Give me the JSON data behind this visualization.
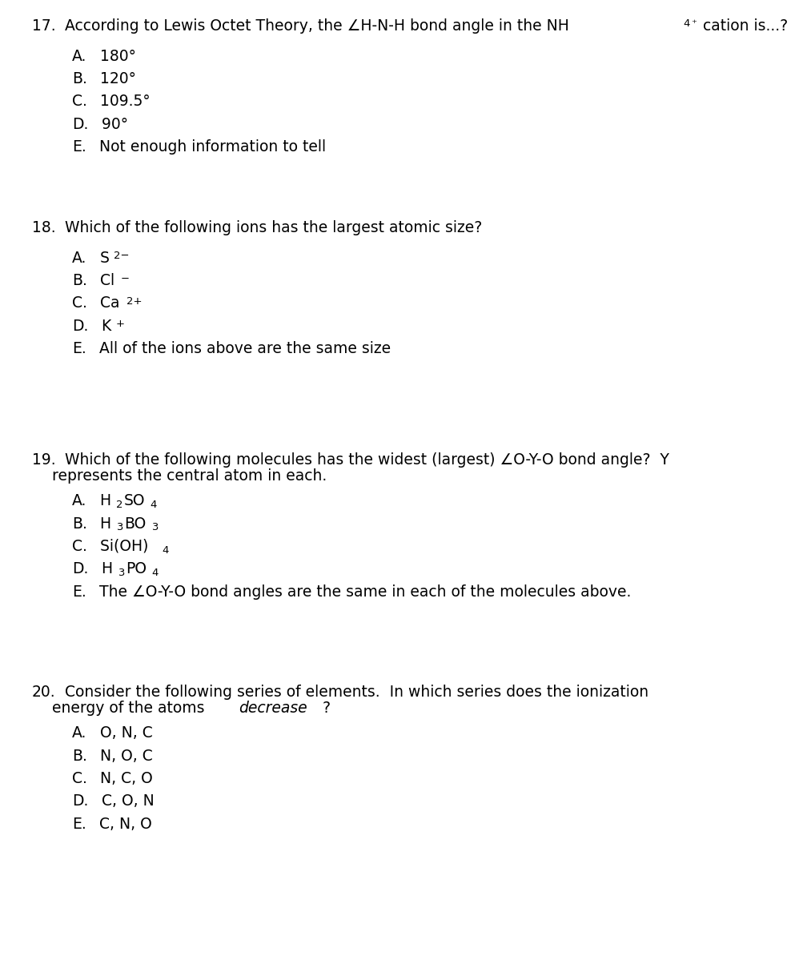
{
  "bg_color": "#ffffff",
  "text_color": "#000000",
  "font_family": "DejaVu Sans",
  "font_size_question": 13.5,
  "font_size_answer": 13.5,
  "questions": [
    {
      "number": "17.",
      "question_parts": [
        {
          "text": "According to Lewis Octet Theory, the ∠H-N-H bond angle in the NH",
          "style": "normal"
        },
        {
          "text": "4",
          "style": "super"
        },
        {
          "text": "⁺",
          "style": "super"
        },
        {
          "text": " cation is...?",
          "style": "normal"
        }
      ],
      "answers": [
        [
          {
            "text": "A.",
            "style": "normal"
          },
          {
            "text": "  180°",
            "style": "normal"
          }
        ],
        [
          {
            "text": "B.",
            "style": "normal"
          },
          {
            "text": "  120°",
            "style": "normal"
          }
        ],
        [
          {
            "text": "C.",
            "style": "normal"
          },
          {
            "text": "  109.5°",
            "style": "normal"
          }
        ],
        [
          {
            "text": "D.",
            "style": "normal"
          },
          {
            "text": "  90°",
            "style": "normal"
          }
        ],
        [
          {
            "text": "E.",
            "style": "normal"
          },
          {
            "text": "  Not enough information to tell",
            "style": "normal"
          }
        ]
      ]
    },
    {
      "number": "18.",
      "question_parts": [
        {
          "text": "Which of the following ions has the largest atomic size?",
          "style": "normal"
        }
      ],
      "answers": [
        [
          {
            "text": "A.",
            "style": "normal"
          },
          {
            "text": "  S",
            "style": "normal"
          },
          {
            "text": "2−",
            "style": "super"
          }
        ],
        [
          {
            "text": "B.",
            "style": "normal"
          },
          {
            "text": "  Cl",
            "style": "normal"
          },
          {
            "text": "−",
            "style": "super"
          }
        ],
        [
          {
            "text": "C.",
            "style": "normal"
          },
          {
            "text": "  Ca",
            "style": "normal"
          },
          {
            "text": "2+",
            "style": "super"
          }
        ],
        [
          {
            "text": "D.",
            "style": "normal"
          },
          {
            "text": "  K",
            "style": "normal"
          },
          {
            "text": "+",
            "style": "super"
          }
        ],
        [
          {
            "text": "E.",
            "style": "normal"
          },
          {
            "text": "  All of the ions above are the same size",
            "style": "normal"
          }
        ]
      ]
    },
    {
      "number": "19.",
      "question_parts": [
        {
          "text": "Which of the following molecules has the widest (largest) ∠O-Y-O bond angle?  Y\n    represents the central atom in each.",
          "style": "normal"
        }
      ],
      "answers": [
        [
          {
            "text": "A.",
            "style": "normal"
          },
          {
            "text": "  H",
            "style": "normal"
          },
          {
            "text": "2",
            "style": "sub"
          },
          {
            "text": "SO",
            "style": "normal"
          },
          {
            "text": "4",
            "style": "sub"
          }
        ],
        [
          {
            "text": "B.",
            "style": "normal"
          },
          {
            "text": "  H",
            "style": "normal"
          },
          {
            "text": "3",
            "style": "sub"
          },
          {
            "text": "BO",
            "style": "normal"
          },
          {
            "text": "3",
            "style": "sub"
          }
        ],
        [
          {
            "text": "C.",
            "style": "normal"
          },
          {
            "text": "  Si(OH)",
            "style": "normal"
          },
          {
            "text": "4",
            "style": "sub"
          }
        ],
        [
          {
            "text": "D.",
            "style": "normal"
          },
          {
            "text": "  H",
            "style": "normal"
          },
          {
            "text": "3",
            "style": "sub"
          },
          {
            "text": "PO",
            "style": "normal"
          },
          {
            "text": "4",
            "style": "sub"
          }
        ],
        [
          {
            "text": "E.",
            "style": "normal"
          },
          {
            "text": "  The ∠O-Y-O bond angles are the same in each of the molecules above.",
            "style": "normal"
          }
        ]
      ]
    },
    {
      "number": "20.",
      "question_parts": [
        {
          "text": "Consider the following series of elements.  In which series does the ionization\n    energy of the atoms ",
          "style": "normal"
        },
        {
          "text": "decrease",
          "style": "italic"
        },
        {
          "text": "?",
          "style": "normal"
        }
      ],
      "answers": [
        [
          {
            "text": "A.",
            "style": "normal"
          },
          {
            "text": "  O, N, C",
            "style": "normal"
          }
        ],
        [
          {
            "text": "B.",
            "style": "normal"
          },
          {
            "text": "  N, O, C",
            "style": "normal"
          }
        ],
        [
          {
            "text": "C.",
            "style": "normal"
          },
          {
            "text": "  N, C, O",
            "style": "normal"
          }
        ],
        [
          {
            "text": "D.",
            "style": "normal"
          },
          {
            "text": "  C, O, N",
            "style": "normal"
          }
        ],
        [
          {
            "text": "E.",
            "style": "normal"
          },
          {
            "text": "  C, N, O",
            "style": "normal"
          }
        ]
      ]
    }
  ]
}
